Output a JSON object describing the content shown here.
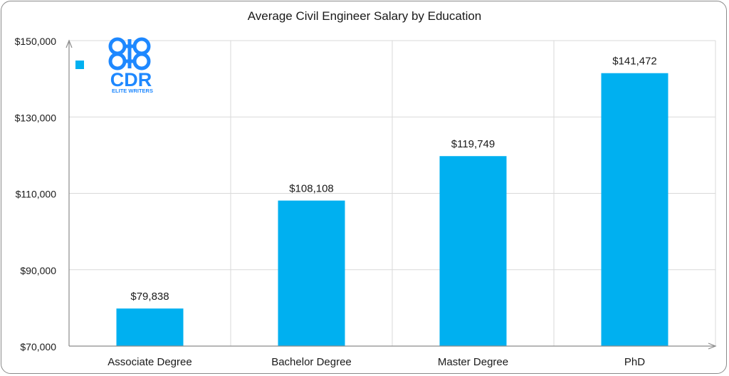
{
  "chart_data": {
    "type": "bar",
    "title": "Average Civil Engineer Salary by Education",
    "categories": [
      "Associate Degree",
      "Bachelor Degree",
      "Master Degree",
      "PhD"
    ],
    "values": [
      79838,
      108108,
      119749,
      141472
    ],
    "value_labels": [
      "$79,838",
      "$108,108",
      "$119,749",
      "$141,472"
    ],
    "ylim": [
      70000,
      150000
    ],
    "yticks": [
      70000,
      90000,
      110000,
      130000,
      150000
    ],
    "ytick_labels": [
      "$70,000",
      "$90,000",
      "$110,000",
      "$130,000",
      "$150,000"
    ],
    "xlabel": "",
    "ylabel": "",
    "grid": true,
    "legend": "top-left",
    "bar_color": "#00B0F0",
    "grid_color": "#d9d9d9",
    "axis_color": "#8c8c8c"
  },
  "logo": {
    "text": "CDR",
    "subtext": "ELITE WRITERS",
    "color": "#1e88ff"
  }
}
